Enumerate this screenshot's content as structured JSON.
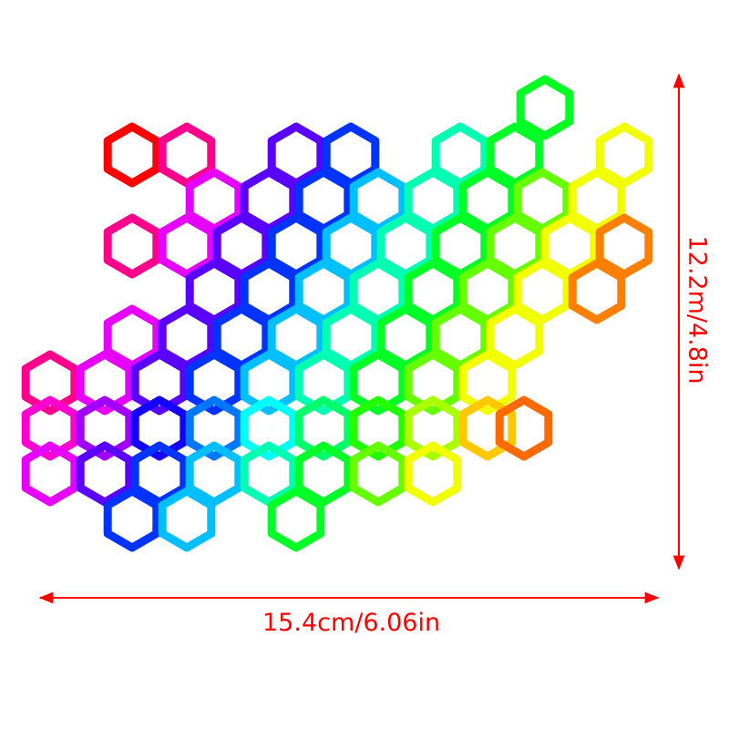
{
  "product": {
    "description_colors": [
      "#ff0000",
      "#ff00ff",
      "#2020ff",
      "#00ffff",
      "#00ff00",
      "#ffff00",
      "#ff8000"
    ]
  },
  "dimensions": {
    "width_label": "15.4cm/6.06in",
    "height_label": "12.2m/4.8in",
    "line_color": "#ff0000"
  }
}
